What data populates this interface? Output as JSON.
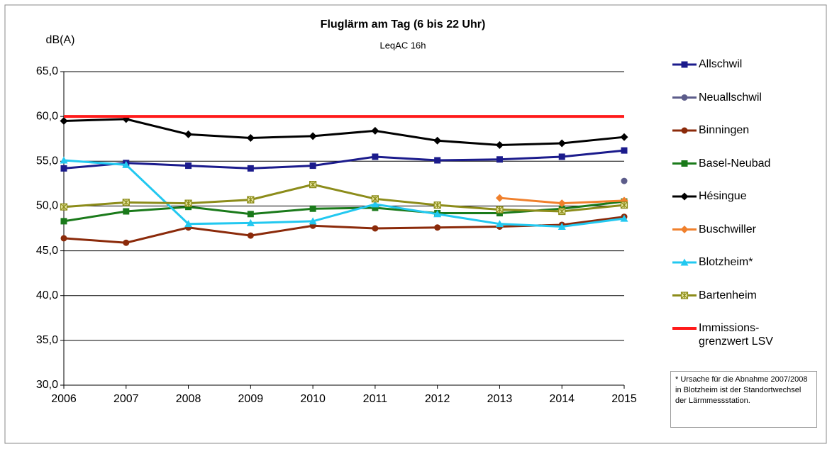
{
  "chart_data": {
    "type": "line",
    "title": "Fluglärm am Tag (6 bis 22 Uhr)",
    "subtitle": "LeqAC 16h",
    "y_label": "dB(A)",
    "categories": [
      "2006",
      "2007",
      "2008",
      "2009",
      "2010",
      "2011",
      "2012",
      "2013",
      "2014",
      "2015"
    ],
    "ylim": [
      30,
      65
    ],
    "yticks": [
      {
        "value": 30,
        "label": "30,0"
      },
      {
        "value": 35,
        "label": "35,0"
      },
      {
        "value": 40,
        "label": "40,0"
      },
      {
        "value": 45,
        "label": "45,0"
      },
      {
        "value": 50,
        "label": "50,0"
      },
      {
        "value": 55,
        "label": "55,0"
      },
      {
        "value": 60,
        "label": "60,0"
      },
      {
        "value": 65,
        "label": "65,0"
      }
    ],
    "grid": true,
    "legend": "right",
    "series": [
      {
        "name": "Allschwil",
        "color": "#1b1b8c",
        "marker": "square",
        "values": [
          54.2,
          54.8,
          54.5,
          54.2,
          54.5,
          55.5,
          55.1,
          55.2,
          55.5,
          56.2
        ]
      },
      {
        "name": "Neuallschwil",
        "color": "#5c5c8a",
        "marker": "circle",
        "values": [
          null,
          null,
          null,
          null,
          null,
          null,
          null,
          null,
          null,
          52.8
        ]
      },
      {
        "name": "Binningen",
        "color": "#8b2a0a",
        "marker": "circle",
        "values": [
          46.4,
          45.9,
          47.6,
          46.7,
          47.8,
          47.5,
          47.6,
          47.7,
          47.9,
          48.8
        ]
      },
      {
        "name": "Basel-Neubad",
        "color": "#1a7a1a",
        "marker": "square",
        "values": [
          48.3,
          49.4,
          49.9,
          49.1,
          49.7,
          49.8,
          49.2,
          49.2,
          49.7,
          50.5
        ]
      },
      {
        "name": "Hésingue",
        "color": "#000000",
        "marker": "diamond",
        "values": [
          59.5,
          59.7,
          58.0,
          57.6,
          57.8,
          58.4,
          57.3,
          56.8,
          57.0,
          57.7
        ]
      },
      {
        "name": "Buschwiller",
        "color": "#f0802c",
        "marker": "diamond",
        "values": [
          null,
          null,
          null,
          null,
          null,
          null,
          null,
          50.9,
          50.3,
          50.6
        ]
      },
      {
        "name": "Blotzheim*",
        "color": "#22c8f0",
        "marker": "triangle",
        "values": [
          55.1,
          54.6,
          48.0,
          48.1,
          48.3,
          50.2,
          49.1,
          48.0,
          47.7,
          48.6
        ]
      },
      {
        "name": "Bartenheim",
        "color": "#8c8c1a",
        "marker": "star",
        "values": [
          49.9,
          50.4,
          50.3,
          50.7,
          52.4,
          50.8,
          50.1,
          49.6,
          49.4,
          50.1
        ]
      },
      {
        "name": "Immissions-\ngrenzwert LSV",
        "color": "#ff1a1a",
        "marker": "none",
        "values": [
          60,
          60,
          60,
          60,
          60,
          60,
          60,
          60,
          60,
          60
        ]
      }
    ],
    "annotation": "* Ursache für die Abnahme 2007/2008 in Blotzheim ist der Standortwechsel der Lärmmessstation."
  }
}
